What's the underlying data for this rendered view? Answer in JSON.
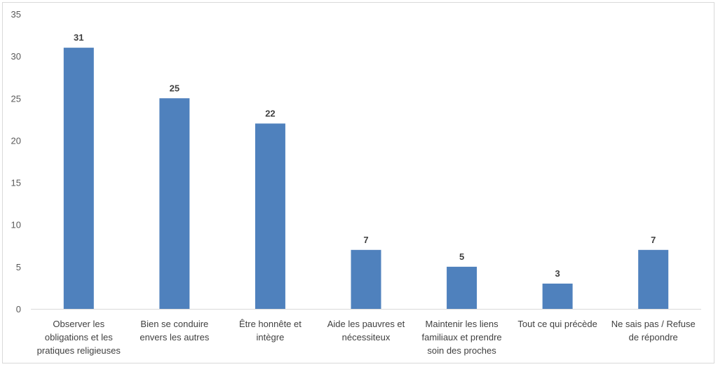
{
  "chart_data": {
    "type": "bar",
    "categories": [
      [
        "Observer les",
        "obligations et les",
        "pratiques religieuses"
      ],
      [
        "Bien se conduire",
        "envers les autres"
      ],
      [
        "Être honnête et",
        "intègre"
      ],
      [
        "Aide les pauvres et",
        "nécessiteux"
      ],
      [
        "Maintenir les liens",
        "familiaux et prendre",
        "soin des proches"
      ],
      [
        "Tout ce qui précède"
      ],
      [
        "Ne sais pas / Refuse",
        "de répondre"
      ]
    ],
    "values": [
      31,
      25,
      22,
      7,
      5,
      3,
      7
    ],
    "ylim": [
      0,
      35
    ],
    "yticks": [
      0,
      5,
      10,
      15,
      20,
      25,
      30,
      35
    ],
    "bar_color": "#4f81bd",
    "grid": false,
    "title": "",
    "xlabel": "",
    "ylabel": ""
  }
}
